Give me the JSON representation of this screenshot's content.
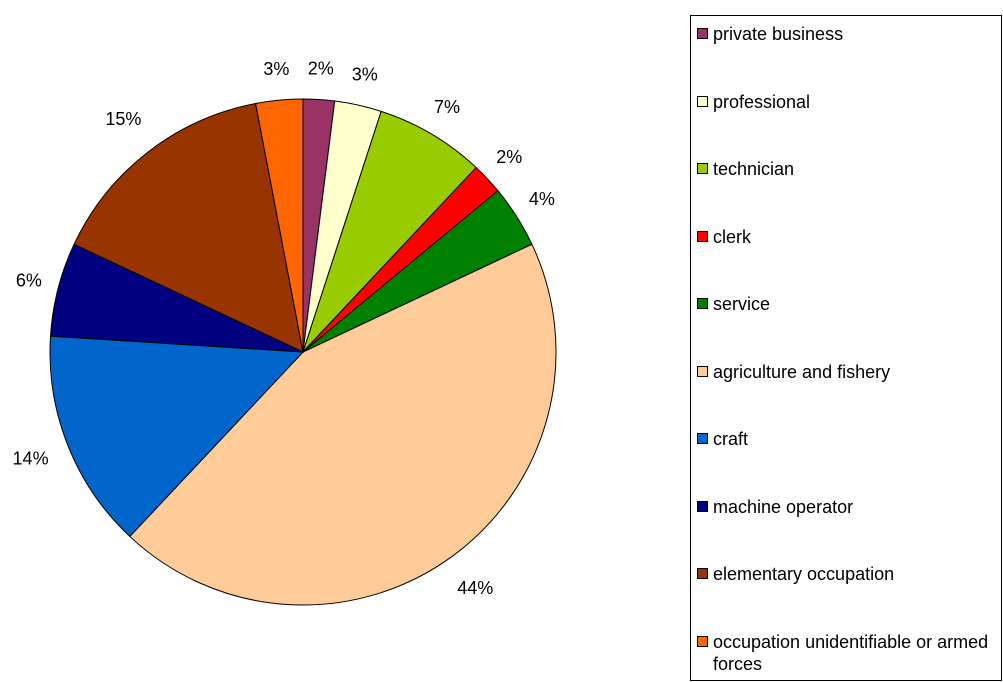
{
  "chart_data": {
    "type": "pie",
    "categories": [
      "private business",
      "professional",
      "technician",
      "clerk",
      "service",
      "agriculture and fishery",
      "craft",
      "machine operator",
      "elementary occupation",
      "occupation unidentifiable or armed forces"
    ],
    "values": [
      2,
      3,
      7,
      2,
      4,
      44,
      14,
      6,
      15,
      3
    ],
    "value_labels": [
      "2%",
      "3%",
      "7%",
      "2%",
      "4%",
      "44%",
      "14%",
      "6%",
      "15%",
      "3%"
    ],
    "colors": [
      "#993366",
      "#ffffcc",
      "#99cc00",
      "#ff0000",
      "#008000",
      "#ffcc99",
      "#0066cc",
      "#000080",
      "#993300",
      "#ff6600"
    ],
    "legend": "right"
  }
}
